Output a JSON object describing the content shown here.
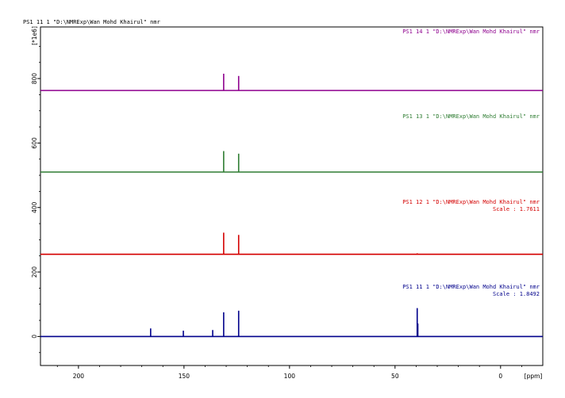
{
  "header": "PS1   11  1  \"D:\\NMRExp\\Wan Mohd Khairul\"  nmr",
  "chart_data": {
    "type": "line",
    "title": "",
    "xlabel": "[ppm]",
    "ylabel": "[*1e6]",
    "xlim": [
      218,
      -20
    ],
    "ylim": [
      -90,
      960
    ],
    "x_ticks": [
      200,
      150,
      100,
      50,
      0
    ],
    "y_ticks": [
      0,
      200,
      400,
      600,
      800
    ],
    "x_reversed": true,
    "grid": false,
    "series": [
      {
        "name": "PS1   11  1  \"D:\\NMRExp\\Wan Mohd Khairul\"  nmr",
        "scale": "Scale : 1.8492",
        "color": "#00008b",
        "baseline": 0,
        "peaks": [
          [
            165.8,
            25
          ],
          [
            150.3,
            18
          ],
          [
            136.4,
            20
          ],
          [
            131.2,
            75
          ],
          [
            124.1,
            80
          ],
          [
            39.5,
            88
          ],
          [
            39.2,
            40
          ]
        ]
      },
      {
        "name": "PS1   12  1  \"D:\\NMRExp\\Wan Mohd Khairul\"  nmr",
        "scale": "Scale : 1.7611",
        "color": "#d40000",
        "baseline": 255,
        "peaks": [
          [
            131.2,
            322
          ],
          [
            124.1,
            315
          ],
          [
            39.5,
            258
          ]
        ]
      },
      {
        "name": "PS1   13  1  \"D:\\NMRExp\\Wan Mohd Khairul\"  nmr",
        "scale": "",
        "color": "#2e7d32",
        "baseline": 510,
        "peaks": [
          [
            131.2,
            575
          ],
          [
            124.1,
            567
          ]
        ]
      },
      {
        "name": "PS1   14  1  \"D:\\NMRExp\\Wan Mohd Khairul\"  nmr",
        "scale": "",
        "color": "#8e008e",
        "baseline": 763,
        "peaks": [
          [
            131.2,
            815
          ],
          [
            124.1,
            808
          ]
        ]
      }
    ]
  }
}
